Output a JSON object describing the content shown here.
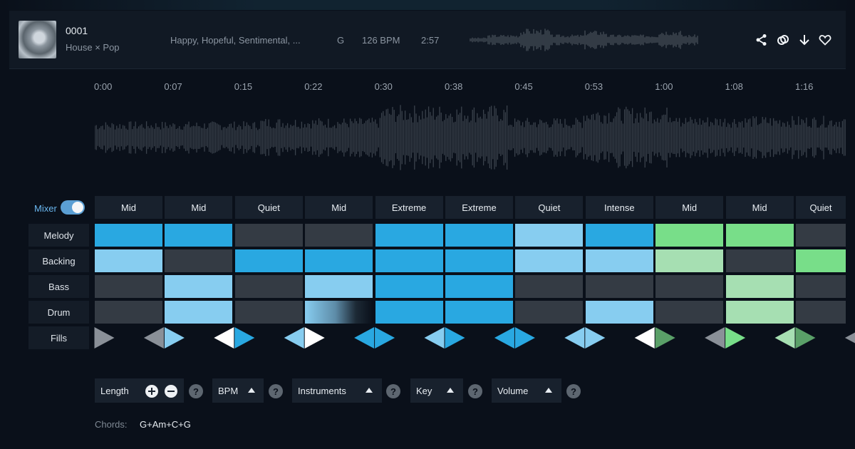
{
  "track": {
    "id": "0001",
    "genre": "House × Pop",
    "moods": "Happy, Hopeful, Sentimental, ...",
    "key": "G",
    "bpm": "126 BPM",
    "duration": "2:57"
  },
  "actions": [
    "share-icon",
    "remix-icon",
    "download-icon",
    "heart-icon"
  ],
  "timeline": [
    "0:00",
    "0:07",
    "0:15",
    "0:22",
    "0:30",
    "0:38",
    "0:45",
    "0:53",
    "1:00",
    "1:08",
    "1:16"
  ],
  "mixer": {
    "label": "Mixer",
    "enabled": true
  },
  "segments": [
    "Mid",
    "Mid",
    "Quiet",
    "Mid",
    "Extreme",
    "Extreme",
    "Quiet",
    "Intense",
    "Mid",
    "Mid",
    "Quiet"
  ],
  "rows": [
    {
      "label": "Melody",
      "cells": [
        "blue",
        "blue",
        "off",
        "off",
        "blue",
        "blue",
        "light",
        "blue",
        "green",
        "green",
        "off"
      ]
    },
    {
      "label": "Backing",
      "cells": [
        "light",
        "off",
        "blue",
        "blue",
        "blue",
        "blue",
        "light",
        "light",
        "pale",
        "off",
        "green"
      ]
    },
    {
      "label": "Bass",
      "cells": [
        "off",
        "light",
        "off",
        "light",
        "blue",
        "blue",
        "off",
        "off",
        "off",
        "pale",
        "off"
      ]
    },
    {
      "label": "Drum",
      "cells": [
        "off",
        "light",
        "off",
        "grad",
        "blue",
        "blue",
        "off",
        "light",
        "off",
        "pale",
        "off"
      ]
    }
  ],
  "fills_label": "Fills",
  "fills": [
    {
      "left": null,
      "right": "#8a9098"
    },
    {
      "left": "#8a9098",
      "right": "#87cdf0"
    },
    {
      "left": "#ffffff",
      "right": "#29a8e1"
    },
    {
      "left": "#87cdf0",
      "right": "#ffffff"
    },
    {
      "left": "#29a8e1",
      "right": "#29a8e1"
    },
    {
      "left": "#87cdf0",
      "right": "#29a8e1"
    },
    {
      "left": "#29a8e1",
      "right": "#29a8e1"
    },
    {
      "left": "#87cdf0",
      "right": "#87cdf0"
    },
    {
      "left": "#ffffff",
      "right": "#5aa068"
    },
    {
      "left": "#8a9098",
      "right": "#78de89"
    },
    {
      "left": "#a6dfb2",
      "right": "#5aa068"
    },
    {
      "left": "#8a9098",
      "right": null
    }
  ],
  "controls": {
    "length": "Length",
    "bpm": "BPM",
    "instruments": "Instruments",
    "key": "Key",
    "volume": "Volume",
    "help": "?"
  },
  "chords": {
    "label": "Chords:",
    "value": "G+Am+C+G"
  },
  "colors": {
    "blue": "#29a8e1",
    "light": "#87cdf0",
    "green": "#78de89",
    "pale": "#a6dfb2",
    "off": "#343b44"
  }
}
